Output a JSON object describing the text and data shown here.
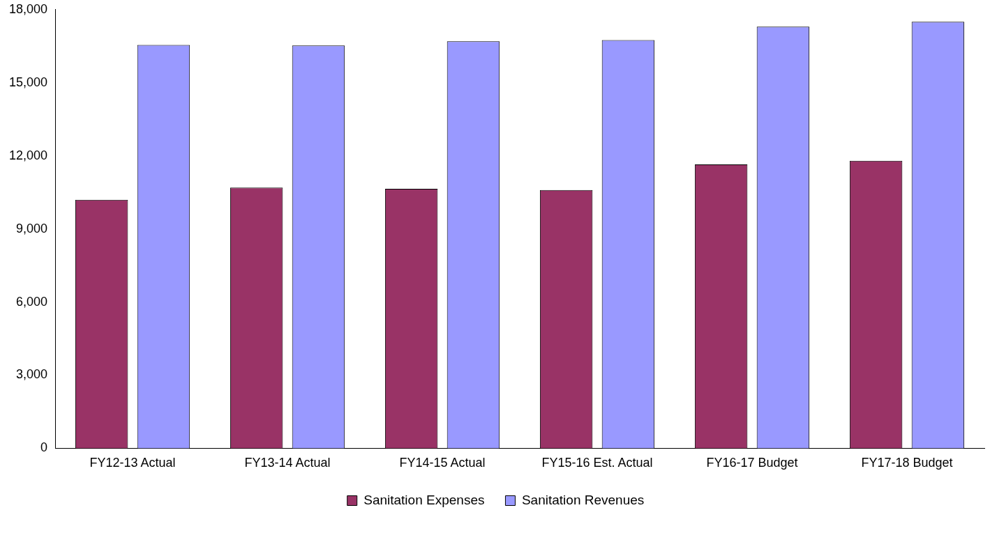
{
  "chart_data": {
    "type": "bar",
    "categories": [
      "FY12-13 Actual",
      "FY13-14 Actual",
      "FY14-15 Actual",
      "FY15-16 Est. Actual",
      "FY16-17 Budget",
      "FY17-18 Budget"
    ],
    "series": [
      {
        "name": "Sanitation Expenses",
        "color": "#993366",
        "values": [
          10200,
          10700,
          10650,
          10600,
          11650,
          11800
        ]
      },
      {
        "name": "Sanitation Revenues",
        "color": "#9999ff",
        "values": [
          16550,
          16530,
          16700,
          16750,
          17300,
          17500
        ]
      }
    ],
    "ylim": [
      0,
      18000
    ],
    "yticks": [
      {
        "value": 0,
        "label": "0"
      },
      {
        "value": 3000,
        "label": "3,000"
      },
      {
        "value": 6000,
        "label": "6,000"
      },
      {
        "value": 9000,
        "label": "9,000"
      },
      {
        "value": 12000,
        "label": "12,000"
      },
      {
        "value": 15000,
        "label": "15,000"
      },
      {
        "value": 18000,
        "label": "18,000"
      }
    ],
    "grid": false,
    "legend": "bottom"
  }
}
